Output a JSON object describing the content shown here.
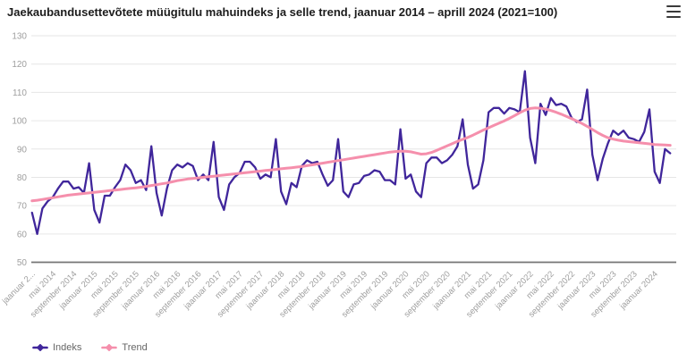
{
  "header": {
    "title": "Jaekaubandusettevõtete müügitulu mahuindeks ja selle trend, jaanuar 2014 – aprill 2024 (2021=100)",
    "menu_icon": "hamburger-menu-icon"
  },
  "legend": {
    "indeks_label": "Indeks",
    "trend_label": "Trend"
  },
  "chart_data": {
    "type": "line",
    "title": "Jaekaubandusettevõtete müügitulu mahuindeks ja selle trend, jaanuar 2014 – aprill 2024 (2021=100)",
    "x_unit": "month",
    "x_range": [
      "jaanuar 2014",
      "aprill 2024"
    ],
    "ylim": [
      50,
      130
    ],
    "grid": true,
    "legend_position": "bottom-left",
    "y_ticks": [
      130,
      120,
      110,
      100,
      90,
      80,
      70,
      60,
      50
    ],
    "x_tick_labels": [
      "jaanuar 2...",
      "mai 2014",
      "september 2014",
      "jaanuar 2015",
      "mai 2015",
      "september 2015",
      "jaanuar 2016",
      "mai 2016",
      "september 2016",
      "jaanuar 2017",
      "mai 2017",
      "september 2017",
      "jaanuar 2018",
      "mai 2018",
      "september 2018",
      "jaanuar 2019",
      "mai 2019",
      "september 2019",
      "jaanuar 2020",
      "mai 2020",
      "september 2020",
      "jaanuar 2021",
      "mai 2021",
      "september 2021",
      "jaanuar 2022",
      "mai 2022",
      "september 2022",
      "jaanuar 2023",
      "mai 2023",
      "september 2023",
      "jaanuar 2024"
    ],
    "x_tick_month_step": 4,
    "colors": {
      "grid": "#e6e6e6",
      "axis_line": "#757575",
      "tick_text": "#9e9e9e",
      "title_text": "#1c1c1c"
    },
    "series": [
      {
        "id": "indeks",
        "name": "Indeks",
        "color": "#40269b",
        "width": 2.3,
        "values": [
          67.5,
          60,
          69,
          71.5,
          73,
          76,
          78.5,
          78.5,
          76,
          76.5,
          74.5,
          85,
          68.5,
          64,
          73.5,
          73.5,
          76.5,
          79,
          84.5,
          82.5,
          78,
          79,
          75.5,
          91,
          74.5,
          66.5,
          76,
          82.5,
          84.5,
          83.5,
          85,
          84,
          79,
          81,
          79,
          92.5,
          73,
          68.5,
          77.5,
          80,
          81.5,
          85.5,
          85.5,
          83.5,
          79.5,
          81,
          80,
          93.5,
          75,
          70.5,
          78,
          76.5,
          84,
          86,
          85,
          85.5,
          81,
          77,
          79,
          93.5,
          75,
          73,
          77.5,
          78,
          80.5,
          81,
          82.5,
          82,
          79,
          79,
          77.5,
          97,
          79.5,
          81,
          75,
          73,
          85,
          87,
          87,
          85,
          86,
          88,
          91,
          100.5,
          84.5,
          76,
          77.5,
          86,
          103,
          104.5,
          104.5,
          102.5,
          104.5,
          104,
          103,
          117.5,
          94,
          85,
          106,
          102,
          108,
          105.5,
          106,
          105,
          101,
          99.5,
          100.5,
          111,
          88,
          79,
          86.5,
          92,
          96.5,
          95,
          96.5,
          94,
          93.5,
          92.5,
          96,
          104,
          82,
          78,
          90,
          88.5
        ]
      },
      {
        "id": "trend",
        "name": "Trend",
        "color": "#f58fac",
        "width": 3,
        "values": [
          71.7,
          71.9,
          72.2,
          72.5,
          72.8,
          73.1,
          73.4,
          73.7,
          73.9,
          74.1,
          74.3,
          74.5,
          74.7,
          74.9,
          75.1,
          75.3,
          75.5,
          75.7,
          75.9,
          76.1,
          76.3,
          76.5,
          76.8,
          77.1,
          77.4,
          77.7,
          78,
          78.4,
          78.8,
          79.1,
          79.4,
          79.6,
          79.8,
          80,
          80.2,
          80.4,
          80.6,
          80.8,
          81,
          81.2,
          81.4,
          81.6,
          81.8,
          82,
          82.2,
          82.4,
          82.6,
          82.8,
          83,
          83.2,
          83.4,
          83.6,
          83.8,
          84.1,
          84.4,
          84.7,
          85,
          85.3,
          85.6,
          85.9,
          86.2,
          86.5,
          86.8,
          87.1,
          87.4,
          87.7,
          88,
          88.3,
          88.6,
          88.9,
          89.1,
          89.2,
          89.2,
          89,
          88.6,
          88.2,
          88.3,
          88.8,
          89.5,
          90.3,
          91.1,
          91.9,
          92.7,
          93.4,
          94.1,
          94.9,
          95.8,
          96.7,
          97.5,
          98.3,
          99.1,
          99.9,
          100.8,
          101.8,
          102.8,
          103.7,
          104.3,
          104.5,
          104.4,
          104.1,
          103.6,
          103,
          102.3,
          101.5,
          100.7,
          99.9,
          99,
          98,
          96.9,
          95.8,
          94.8,
          94,
          93.5,
          93.1,
          92.8,
          92.6,
          92.4,
          92.2,
          92,
          91.8,
          91.6,
          91.5,
          91.4,
          91.3
        ]
      }
    ]
  }
}
